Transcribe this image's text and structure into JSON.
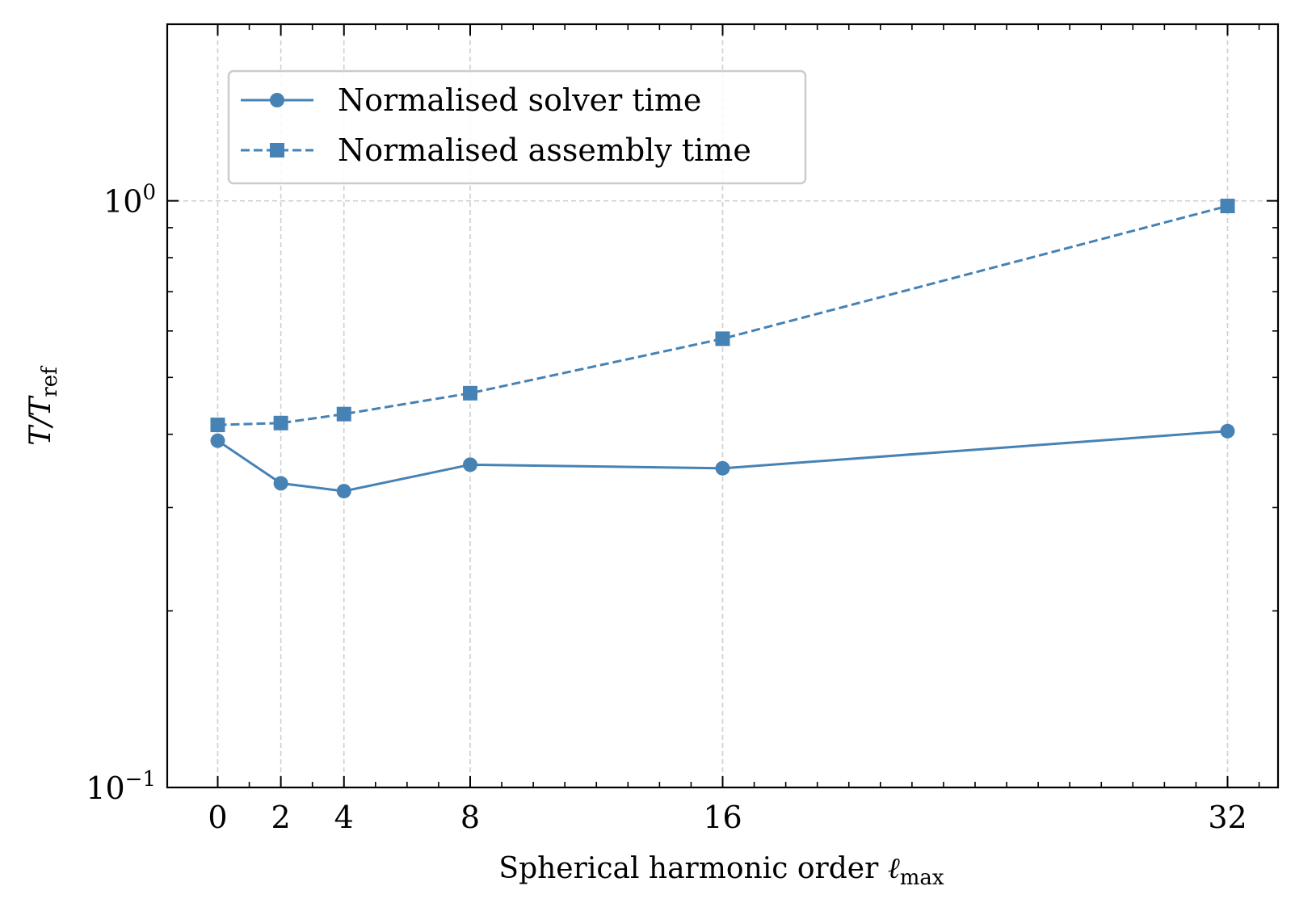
{
  "chart_data": {
    "type": "line",
    "title": "",
    "xlabel": {
      "main": "Spherical harmonic order ",
      "symbol": "ℓ",
      "subscript": "max"
    },
    "ylabel": {
      "main": "T/T",
      "subscript": "ref"
    },
    "xscale": "linear",
    "yscale": "log",
    "xlim": [
      -1.6,
      33.6
    ],
    "ylim": [
      0.1,
      2.0
    ],
    "x": [
      0,
      2,
      4,
      8,
      16,
      32
    ],
    "xticks": [
      "0",
      "2",
      "4",
      "8",
      "16",
      "32"
    ],
    "yticks": [
      {
        "value": 0.1,
        "base": "10",
        "exp": "−1"
      },
      {
        "value": 1.0,
        "base": "10",
        "exp": "0"
      }
    ],
    "series": [
      {
        "name": "Normalised solver time",
        "marker": "circle",
        "linestyle": "solid",
        "color": "#4682b4",
        "values": [
          0.39,
          0.33,
          0.32,
          0.355,
          0.35,
          0.405
        ]
      },
      {
        "name": "Normalised assembly time",
        "marker": "square",
        "linestyle": "dashed",
        "color": "#4682b4",
        "values": [
          0.415,
          0.418,
          0.433,
          0.47,
          0.582,
          0.98
        ]
      }
    ],
    "legend_position": "top-left",
    "grid": true
  }
}
